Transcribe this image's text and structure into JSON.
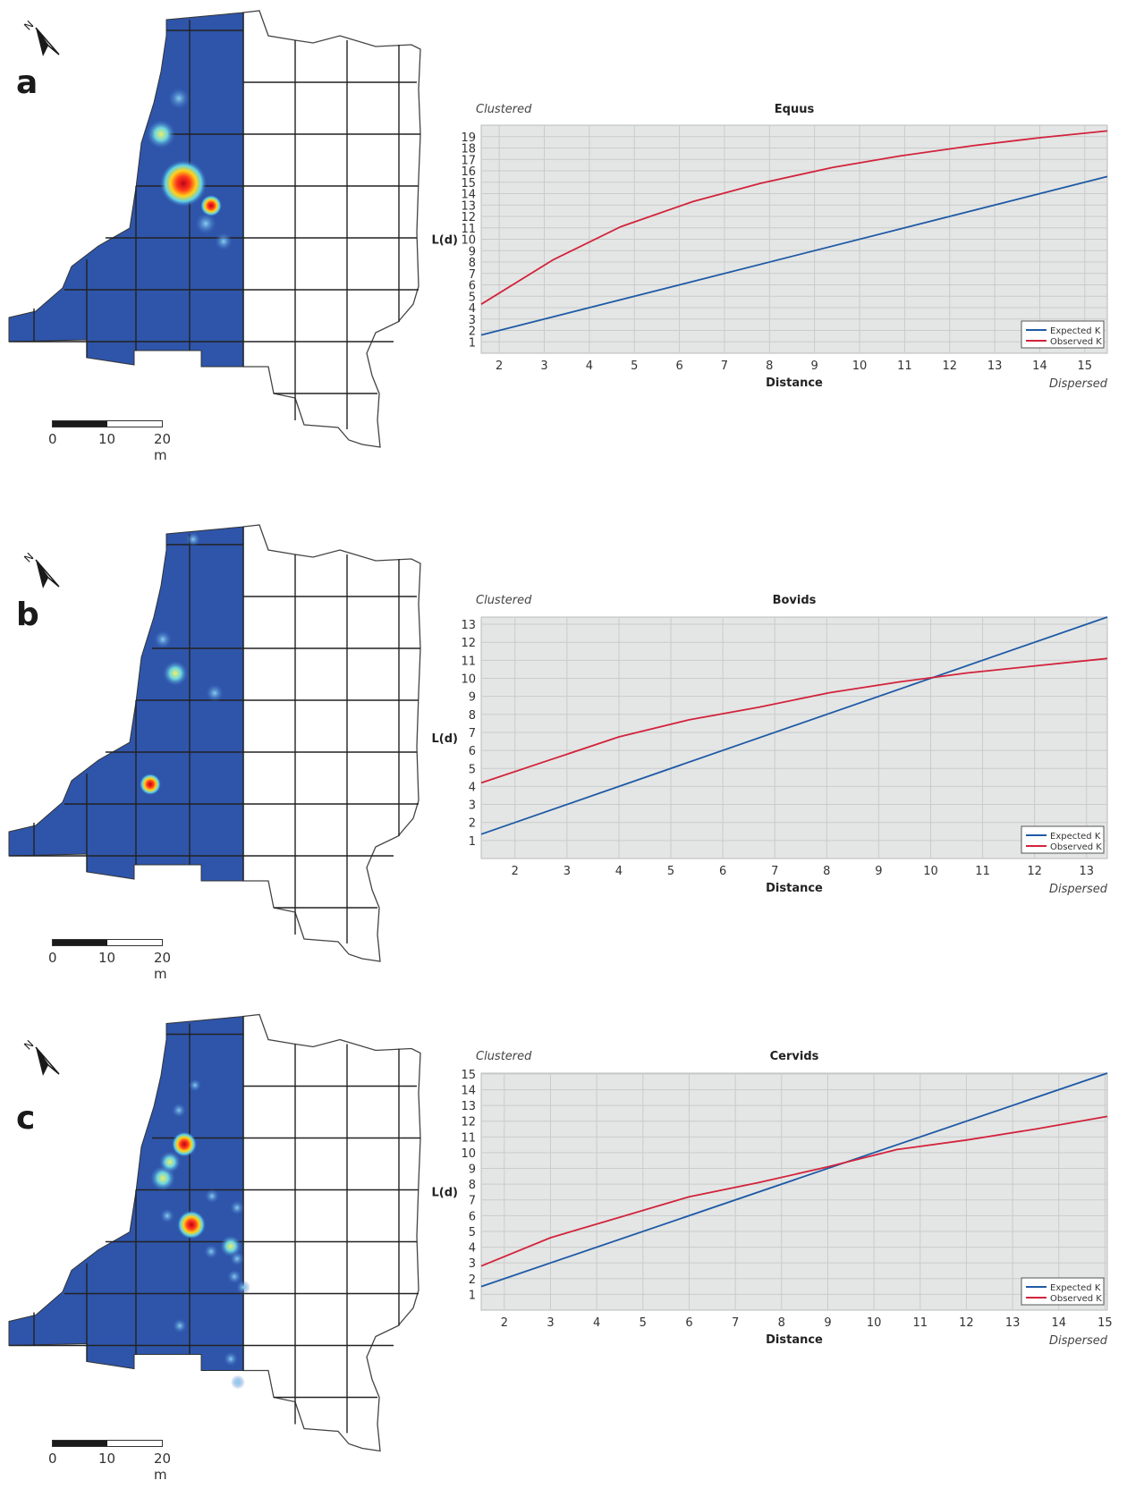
{
  "panels": [
    {
      "letter": "a",
      "scale": {
        "zero": "0",
        "mid": "10",
        "end": "20 m"
      }
    },
    {
      "letter": "b",
      "scale": {
        "zero": "0",
        "mid": "10",
        "end": "20 m"
      }
    },
    {
      "letter": "c",
      "scale": {
        "zero": "0",
        "mid": "10",
        "end": "20 m"
      }
    }
  ],
  "north_label": "N",
  "chart_data": [
    {
      "type": "line",
      "title": "Equus",
      "xlabel": "Distance",
      "ylabel": "L(d)",
      "corner_left": "Clustered",
      "corner_right": "Dispersed",
      "xlim": [
        1.6,
        15.5
      ],
      "ylim": [
        0,
        20
      ],
      "xticks": [
        2,
        3,
        4,
        5,
        6,
        7,
        8,
        9,
        10,
        11,
        12,
        13,
        14,
        15
      ],
      "yticks": [
        1,
        2,
        3,
        4,
        5,
        6,
        7,
        8,
        9,
        10,
        11,
        12,
        13,
        14,
        15,
        16,
        17,
        18,
        19
      ],
      "legend_position": "bottom-right",
      "series": [
        {
          "name": "Expected K",
          "color": "#1f5aa6",
          "points": [
            [
              1.6,
              1.6
            ],
            [
              15.5,
              15.5
            ]
          ]
        },
        {
          "name": "Observed K",
          "color": "#d2233c",
          "points": [
            [
              1.6,
              4.3
            ],
            [
              3.2,
              8.2
            ],
            [
              4.7,
              11.1
            ],
            [
              6.3,
              13.3
            ],
            [
              7.8,
              14.9
            ],
            [
              9.4,
              16.3
            ],
            [
              10.9,
              17.3
            ],
            [
              12.5,
              18.2
            ],
            [
              14.0,
              18.9
            ],
            [
              15.5,
              19.5
            ]
          ]
        }
      ]
    },
    {
      "type": "line",
      "title": "Bovids",
      "xlabel": "Distance",
      "ylabel": "L(d)",
      "corner_left": "Clustered",
      "corner_right": "Dispersed",
      "xlim": [
        1.35,
        13.4
      ],
      "ylim": [
        0,
        13.4
      ],
      "xticks": [
        2,
        3,
        4,
        5,
        6,
        7,
        8,
        9,
        10,
        11,
        12,
        13
      ],
      "yticks": [
        1,
        2,
        3,
        4,
        5,
        6,
        7,
        8,
        9,
        10,
        11,
        12,
        13
      ],
      "legend_position": "bottom-right",
      "series": [
        {
          "name": "Expected K",
          "color": "#1f5aa6",
          "points": [
            [
              1.35,
              1.35
            ],
            [
              13.4,
              13.4
            ]
          ]
        },
        {
          "name": "Observed K",
          "color": "#d2233c",
          "points": [
            [
              1.35,
              4.2
            ],
            [
              2.7,
              5.5
            ],
            [
              4.0,
              6.75
            ],
            [
              5.35,
              7.7
            ],
            [
              6.7,
              8.4
            ],
            [
              8.05,
              9.2
            ],
            [
              9.4,
              9.8
            ],
            [
              10.7,
              10.3
            ],
            [
              12.05,
              10.7
            ],
            [
              13.4,
              11.1
            ]
          ]
        }
      ]
    },
    {
      "type": "line",
      "title": "Cervids",
      "xlabel": "Distance",
      "ylabel": "L(d)",
      "corner_left": "Clustered",
      "corner_right": "Dispersed",
      "xlim": [
        1.5,
        15.05
      ],
      "ylim": [
        0,
        15.05
      ],
      "xticks": [
        2,
        3,
        4,
        5,
        6,
        7,
        8,
        9,
        10,
        11,
        12,
        13,
        14,
        15
      ],
      "yticks": [
        1,
        2,
        3,
        4,
        5,
        6,
        7,
        8,
        9,
        10,
        11,
        12,
        13,
        14,
        15
      ],
      "legend_position": "bottom-right",
      "series": [
        {
          "name": "Expected K",
          "color": "#1f5aa6",
          "points": [
            [
              1.5,
              1.5
            ],
            [
              15.05,
              15.05
            ]
          ]
        },
        {
          "name": "Observed K",
          "color": "#d2233c",
          "points": [
            [
              1.5,
              2.8
            ],
            [
              3.0,
              4.6
            ],
            [
              4.5,
              5.9
            ],
            [
              6.0,
              7.2
            ],
            [
              7.5,
              8.1
            ],
            [
              9.0,
              9.1
            ],
            [
              10.5,
              10.2
            ],
            [
              12.0,
              10.8
            ],
            [
              13.5,
              11.5
            ],
            [
              15.05,
              12.3
            ]
          ]
        }
      ]
    }
  ]
}
